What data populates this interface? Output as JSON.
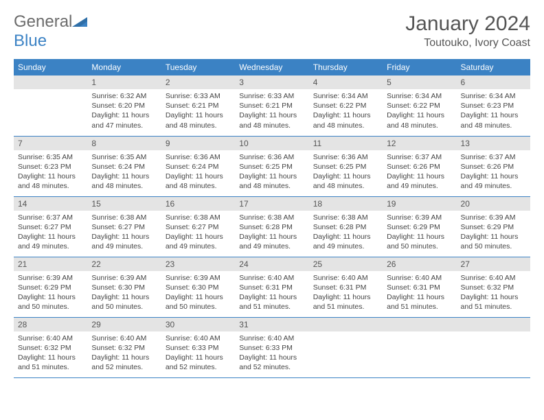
{
  "logo": {
    "word1": "General",
    "word2": "Blue"
  },
  "title": "January 2024",
  "location": "Toutouko, Ivory Coast",
  "colors": {
    "header_bg": "#3b82c4",
    "header_text": "#ffffff",
    "daynum_bg": "#e4e4e4",
    "border": "#3b82c4",
    "body_text": "#444444"
  },
  "daysOfWeek": [
    "Sunday",
    "Monday",
    "Tuesday",
    "Wednesday",
    "Thursday",
    "Friday",
    "Saturday"
  ],
  "weeks": [
    [
      null,
      {
        "n": "1",
        "sunrise": "6:32 AM",
        "sunset": "6:20 PM",
        "daylight": "11 hours and 47 minutes."
      },
      {
        "n": "2",
        "sunrise": "6:33 AM",
        "sunset": "6:21 PM",
        "daylight": "11 hours and 48 minutes."
      },
      {
        "n": "3",
        "sunrise": "6:33 AM",
        "sunset": "6:21 PM",
        "daylight": "11 hours and 48 minutes."
      },
      {
        "n": "4",
        "sunrise": "6:34 AM",
        "sunset": "6:22 PM",
        "daylight": "11 hours and 48 minutes."
      },
      {
        "n": "5",
        "sunrise": "6:34 AM",
        "sunset": "6:22 PM",
        "daylight": "11 hours and 48 minutes."
      },
      {
        "n": "6",
        "sunrise": "6:34 AM",
        "sunset": "6:23 PM",
        "daylight": "11 hours and 48 minutes."
      }
    ],
    [
      {
        "n": "7",
        "sunrise": "6:35 AM",
        "sunset": "6:23 PM",
        "daylight": "11 hours and 48 minutes."
      },
      {
        "n": "8",
        "sunrise": "6:35 AM",
        "sunset": "6:24 PM",
        "daylight": "11 hours and 48 minutes."
      },
      {
        "n": "9",
        "sunrise": "6:36 AM",
        "sunset": "6:24 PM",
        "daylight": "11 hours and 48 minutes."
      },
      {
        "n": "10",
        "sunrise": "6:36 AM",
        "sunset": "6:25 PM",
        "daylight": "11 hours and 48 minutes."
      },
      {
        "n": "11",
        "sunrise": "6:36 AM",
        "sunset": "6:25 PM",
        "daylight": "11 hours and 48 minutes."
      },
      {
        "n": "12",
        "sunrise": "6:37 AM",
        "sunset": "6:26 PM",
        "daylight": "11 hours and 49 minutes."
      },
      {
        "n": "13",
        "sunrise": "6:37 AM",
        "sunset": "6:26 PM",
        "daylight": "11 hours and 49 minutes."
      }
    ],
    [
      {
        "n": "14",
        "sunrise": "6:37 AM",
        "sunset": "6:27 PM",
        "daylight": "11 hours and 49 minutes."
      },
      {
        "n": "15",
        "sunrise": "6:38 AM",
        "sunset": "6:27 PM",
        "daylight": "11 hours and 49 minutes."
      },
      {
        "n": "16",
        "sunrise": "6:38 AM",
        "sunset": "6:27 PM",
        "daylight": "11 hours and 49 minutes."
      },
      {
        "n": "17",
        "sunrise": "6:38 AM",
        "sunset": "6:28 PM",
        "daylight": "11 hours and 49 minutes."
      },
      {
        "n": "18",
        "sunrise": "6:38 AM",
        "sunset": "6:28 PM",
        "daylight": "11 hours and 49 minutes."
      },
      {
        "n": "19",
        "sunrise": "6:39 AM",
        "sunset": "6:29 PM",
        "daylight": "11 hours and 50 minutes."
      },
      {
        "n": "20",
        "sunrise": "6:39 AM",
        "sunset": "6:29 PM",
        "daylight": "11 hours and 50 minutes."
      }
    ],
    [
      {
        "n": "21",
        "sunrise": "6:39 AM",
        "sunset": "6:29 PM",
        "daylight": "11 hours and 50 minutes."
      },
      {
        "n": "22",
        "sunrise": "6:39 AM",
        "sunset": "6:30 PM",
        "daylight": "11 hours and 50 minutes."
      },
      {
        "n": "23",
        "sunrise": "6:39 AM",
        "sunset": "6:30 PM",
        "daylight": "11 hours and 50 minutes."
      },
      {
        "n": "24",
        "sunrise": "6:40 AM",
        "sunset": "6:31 PM",
        "daylight": "11 hours and 51 minutes."
      },
      {
        "n": "25",
        "sunrise": "6:40 AM",
        "sunset": "6:31 PM",
        "daylight": "11 hours and 51 minutes."
      },
      {
        "n": "26",
        "sunrise": "6:40 AM",
        "sunset": "6:31 PM",
        "daylight": "11 hours and 51 minutes."
      },
      {
        "n": "27",
        "sunrise": "6:40 AM",
        "sunset": "6:32 PM",
        "daylight": "11 hours and 51 minutes."
      }
    ],
    [
      {
        "n": "28",
        "sunrise": "6:40 AM",
        "sunset": "6:32 PM",
        "daylight": "11 hours and 51 minutes."
      },
      {
        "n": "29",
        "sunrise": "6:40 AM",
        "sunset": "6:32 PM",
        "daylight": "11 hours and 52 minutes."
      },
      {
        "n": "30",
        "sunrise": "6:40 AM",
        "sunset": "6:33 PM",
        "daylight": "11 hours and 52 minutes."
      },
      {
        "n": "31",
        "sunrise": "6:40 AM",
        "sunset": "6:33 PM",
        "daylight": "11 hours and 52 minutes."
      },
      null,
      null,
      null
    ]
  ],
  "labels": {
    "sunrise": "Sunrise:",
    "sunset": "Sunset:",
    "daylight": "Daylight:"
  }
}
